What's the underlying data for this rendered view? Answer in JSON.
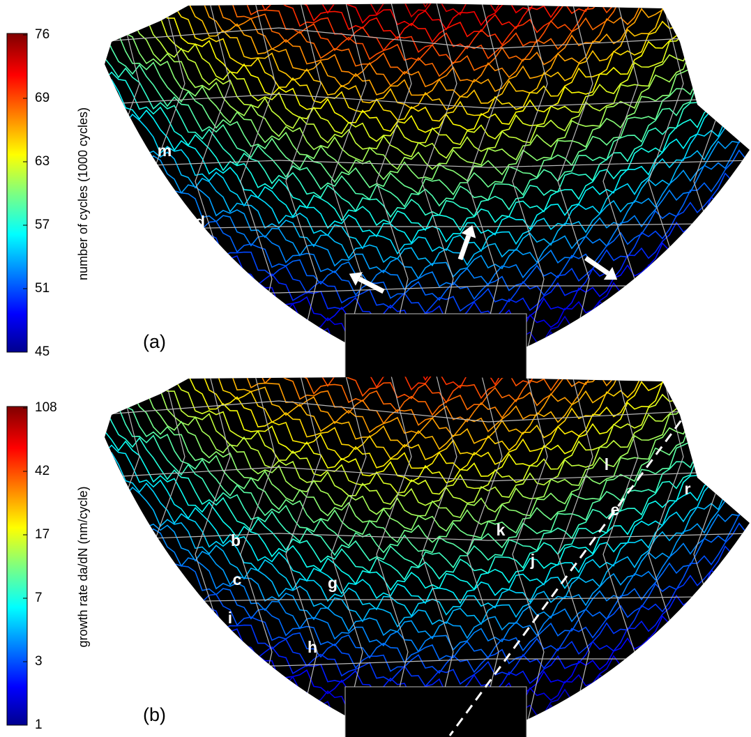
{
  "panels": [
    {
      "label": "(a)",
      "colorbar": {
        "title": "number of cycles (1000 cycles)",
        "ticks": [
          76,
          69,
          63,
          57,
          51,
          45
        ]
      },
      "annotations": [
        "m",
        "d"
      ]
    },
    {
      "label": "(b)",
      "colorbar": {
        "title": "growth rate da/dN (nm/cycle)",
        "ticks": [
          108,
          42,
          17,
          7,
          3,
          1
        ]
      },
      "annotations": [
        "b",
        "c",
        "i",
        "g",
        "h",
        "k",
        "j",
        "e",
        "l",
        "r"
      ]
    }
  ]
}
